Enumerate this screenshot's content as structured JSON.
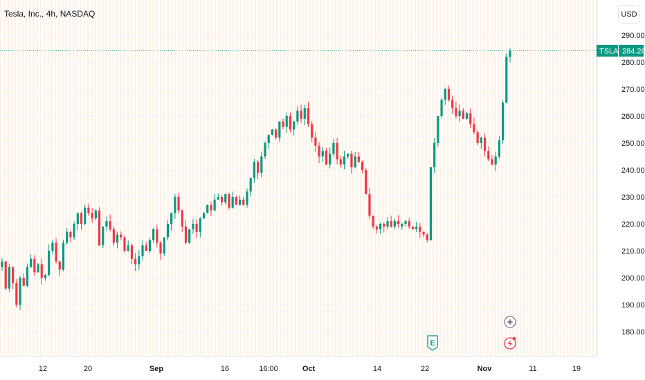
{
  "header": {
    "title": "Tesla, Inc., 4h, NASDAQ",
    "currency_button": "USD"
  },
  "price_tag": {
    "symbol": "TSLA",
    "value": "284.26"
  },
  "events": {
    "earnings_icon": "E"
  },
  "colors": {
    "up": "#089981",
    "down": "#f23645",
    "grid": "#f0f3fa",
    "session_stripe": "#fde8d2"
  },
  "chart_data": {
    "type": "candlestick",
    "title": "Tesla, Inc., 4h, NASDAQ",
    "currency": "USD",
    "ylim": [
      175,
      292
    ],
    "y_ticks": [
      "290.00",
      "280.00",
      "270.00",
      "260.00",
      "250.00",
      "240.00",
      "230.00",
      "220.00",
      "210.00",
      "200.00",
      "190.00",
      "180.00"
    ],
    "x_ticks": [
      "12",
      "20",
      "Sep",
      "16",
      "16:00",
      "Oct",
      "14",
      "22",
      "Nov",
      "11",
      "19"
    ],
    "last_price": 284.26,
    "series_path": [
      [
        206,
        "up"
      ],
      [
        196,
        "down"
      ],
      [
        204,
        "up"
      ],
      [
        198,
        "down"
      ],
      [
        190,
        "down"
      ],
      [
        200,
        "up"
      ],
      [
        197,
        "down"
      ],
      [
        204,
        "up"
      ],
      [
        207,
        "up"
      ],
      [
        202,
        "down"
      ],
      [
        205,
        "up"
      ],
      [
        200,
        "down"
      ],
      [
        201,
        "up"
      ],
      [
        210,
        "up"
      ],
      [
        213,
        "up"
      ],
      [
        206,
        "down"
      ],
      [
        203,
        "down"
      ],
      [
        213,
        "up"
      ],
      [
        217,
        "up"
      ],
      [
        215,
        "down"
      ],
      [
        220,
        "up"
      ],
      [
        224,
        "up"
      ],
      [
        220,
        "down"
      ],
      [
        226,
        "up"
      ],
      [
        224,
        "down"
      ],
      [
        222,
        "down"
      ],
      [
        225,
        "up"
      ],
      [
        212,
        "down"
      ],
      [
        219,
        "up"
      ],
      [
        221,
        "up"
      ],
      [
        218,
        "down"
      ],
      [
        213,
        "down"
      ],
      [
        216,
        "up"
      ],
      [
        215,
        "down"
      ],
      [
        210,
        "down"
      ],
      [
        212,
        "up"
      ],
      [
        207,
        "down"
      ],
      [
        205,
        "down"
      ],
      [
        208,
        "up"
      ],
      [
        212,
        "up"
      ],
      [
        210,
        "down"
      ],
      [
        214,
        "up"
      ],
      [
        218,
        "up"
      ],
      [
        213,
        "down"
      ],
      [
        209,
        "down"
      ],
      [
        215,
        "up"
      ],
      [
        220,
        "up"
      ],
      [
        224,
        "up"
      ],
      [
        230,
        "up"
      ],
      [
        225,
        "down"
      ],
      [
        219,
        "down"
      ],
      [
        213,
        "down"
      ],
      [
        218,
        "up"
      ],
      [
        220,
        "up"
      ],
      [
        217,
        "down"
      ],
      [
        222,
        "up"
      ],
      [
        224,
        "up"
      ],
      [
        227,
        "up"
      ],
      [
        225,
        "down"
      ],
      [
        229,
        "up"
      ],
      [
        230,
        "up"
      ],
      [
        228,
        "down"
      ],
      [
        231,
        "up"
      ],
      [
        226,
        "down"
      ],
      [
        230,
        "up"
      ],
      [
        227,
        "down"
      ],
      [
        229,
        "up"
      ],
      [
        227,
        "down"
      ],
      [
        232,
        "up"
      ],
      [
        237,
        "up"
      ],
      [
        243,
        "up"
      ],
      [
        239,
        "down"
      ],
      [
        245,
        "up"
      ],
      [
        250,
        "up"
      ],
      [
        253,
        "up"
      ],
      [
        255,
        "up"
      ],
      [
        252,
        "down"
      ],
      [
        258,
        "up"
      ],
      [
        256,
        "down"
      ],
      [
        260,
        "up"
      ],
      [
        255,
        "down"
      ],
      [
        258,
        "up"
      ],
      [
        262,
        "up"
      ],
      [
        259,
        "down"
      ],
      [
        263,
        "up"
      ],
      [
        257,
        "down"
      ],
      [
        252,
        "down"
      ],
      [
        249,
        "down"
      ],
      [
        245,
        "down"
      ],
      [
        247,
        "up"
      ],
      [
        242,
        "down"
      ],
      [
        246,
        "up"
      ],
      [
        250,
        "up"
      ],
      [
        244,
        "down"
      ],
      [
        242,
        "down"
      ],
      [
        245,
        "up"
      ],
      [
        246,
        "up"
      ],
      [
        241,
        "down"
      ],
      [
        245,
        "up"
      ],
      [
        243,
        "down"
      ],
      [
        240,
        "down"
      ],
      [
        231,
        "down"
      ],
      [
        223,
        "down"
      ],
      [
        219,
        "down"
      ],
      [
        218,
        "down"
      ],
      [
        220,
        "up"
      ],
      [
        219,
        "down"
      ],
      [
        221,
        "up"
      ],
      [
        219,
        "down"
      ],
      [
        221,
        "up"
      ],
      [
        220,
        "down"
      ],
      [
        220,
        "up"
      ],
      [
        221,
        "up"
      ],
      [
        219,
        "down"
      ],
      [
        218,
        "down"
      ],
      [
        219,
        "up"
      ],
      [
        217,
        "down"
      ],
      [
        216,
        "down"
      ],
      [
        214,
        "down"
      ],
      [
        241,
        "up"
      ],
      [
        250,
        "up"
      ],
      [
        260,
        "up"
      ],
      [
        266,
        "up"
      ],
      [
        270,
        "up"
      ],
      [
        266,
        "down"
      ],
      [
        263,
        "down"
      ],
      [
        260,
        "down"
      ],
      [
        262,
        "up"
      ],
      [
        259,
        "down"
      ],
      [
        261,
        "up"
      ],
      [
        257,
        "down"
      ],
      [
        254,
        "down"
      ],
      [
        250,
        "down"
      ],
      [
        252,
        "up"
      ],
      [
        247,
        "down"
      ],
      [
        244,
        "down"
      ],
      [
        242,
        "down"
      ],
      [
        245,
        "up"
      ],
      [
        251,
        "up"
      ],
      [
        265,
        "up"
      ],
      [
        282,
        "up"
      ],
      [
        284.26,
        "up"
      ]
    ]
  }
}
